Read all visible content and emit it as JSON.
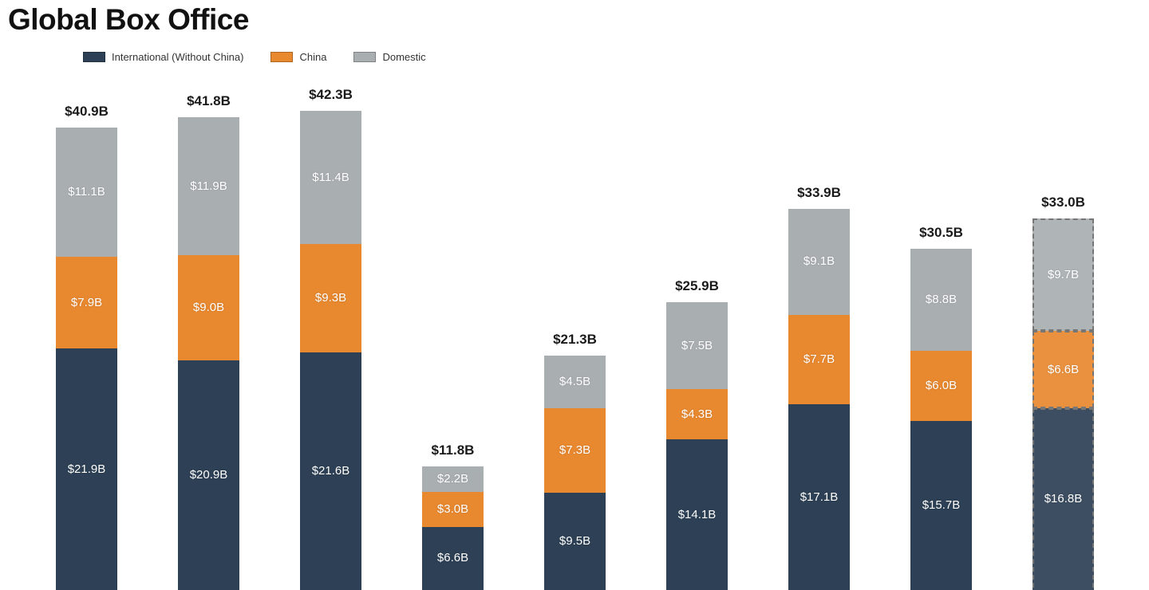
{
  "title": "Global Box Office",
  "legend": [
    {
      "label": "International (Without China)",
      "color": "#2d4055"
    },
    {
      "label": "China",
      "color": "#e8882f"
    },
    {
      "label": "Domestic",
      "color": "#a9aeb1"
    }
  ],
  "chart_data": {
    "type": "bar",
    "stacked": true,
    "title": "Global Box Office",
    "unit": "USD billions",
    "legend_position": "top-left",
    "grid": false,
    "series_order": [
      "international",
      "china",
      "domestic"
    ],
    "series_names": {
      "international": "International (Without China)",
      "china": "China",
      "domestic": "Domestic"
    },
    "bars": [
      {
        "total": 40.9,
        "total_label": "$40.9B",
        "dashed": false,
        "segments": {
          "international": {
            "value": 21.9,
            "label": "$21.9B"
          },
          "china": {
            "value": 7.9,
            "label": "$7.9B"
          },
          "domestic": {
            "value": 11.1,
            "label": "$11.1B"
          }
        }
      },
      {
        "total": 41.8,
        "total_label": "$41.8B",
        "dashed": false,
        "segments": {
          "international": {
            "value": 20.9,
            "label": "$20.9B"
          },
          "china": {
            "value": 9.0,
            "label": "$9.0B"
          },
          "domestic": {
            "value": 11.9,
            "label": "$11.9B"
          }
        }
      },
      {
        "total": 42.3,
        "total_label": "$42.3B",
        "dashed": false,
        "segments": {
          "international": {
            "value": 21.6,
            "label": "$21.6B"
          },
          "china": {
            "value": 9.3,
            "label": "$9.3B"
          },
          "domestic": {
            "value": 11.4,
            "label": "$11.4B"
          }
        }
      },
      {
        "total": 11.8,
        "total_label": "$11.8B",
        "dashed": false,
        "segments": {
          "international": {
            "value": 6.6,
            "label": "$6.6B"
          },
          "china": {
            "value": 3.0,
            "label": "$3.0B"
          },
          "domestic": {
            "value": 2.2,
            "label": "$2.2B"
          }
        }
      },
      {
        "total": 21.3,
        "total_label": "$21.3B",
        "dashed": false,
        "segments": {
          "international": {
            "value": 9.5,
            "label": "$9.5B"
          },
          "china": {
            "value": 7.3,
            "label": "$7.3B"
          },
          "domestic": {
            "value": 4.5,
            "label": "$4.5B"
          }
        }
      },
      {
        "total": 25.9,
        "total_label": "$25.9B",
        "dashed": false,
        "segments": {
          "international": {
            "value": 14.1,
            "label": "$14.1B"
          },
          "china": {
            "value": 4.3,
            "label": "$4.3B"
          },
          "domestic": {
            "value": 7.5,
            "label": "$7.5B"
          }
        }
      },
      {
        "total": 33.9,
        "total_label": "$33.9B",
        "dashed": false,
        "segments": {
          "international": {
            "value": 17.1,
            "label": "$17.1B"
          },
          "china": {
            "value": 7.7,
            "label": "$7.7B"
          },
          "domestic": {
            "value": 9.1,
            "label": "$9.1B"
          }
        }
      },
      {
        "total": 30.5,
        "total_label": "$30.5B",
        "dashed": false,
        "segments": {
          "international": {
            "value": 15.7,
            "label": "$15.7B"
          },
          "china": {
            "value": 6.0,
            "label": "$6.0B"
          },
          "domestic": {
            "value": 8.8,
            "label": "$8.8B"
          }
        }
      },
      {
        "total": 33.0,
        "total_label": "$33.0B",
        "dashed": true,
        "segments": {
          "international": {
            "value": 16.8,
            "label": "$16.8B"
          },
          "china": {
            "value": 6.6,
            "label": "$6.6B"
          },
          "domestic": {
            "value": 9.7,
            "label": "$9.7B"
          }
        }
      }
    ]
  }
}
